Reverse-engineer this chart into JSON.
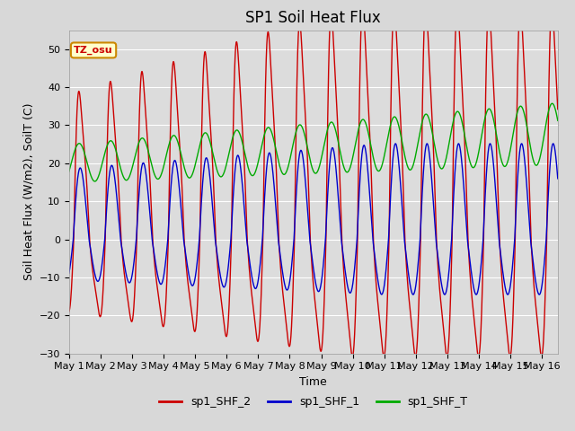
{
  "title": "SP1 Soil Heat Flux",
  "xlabel": "Time",
  "ylabel": "Soil Heat Flux (W/m2), SoilT (C)",
  "ylim": [
    -30,
    55
  ],
  "yticks": [
    -30,
    -20,
    -10,
    0,
    10,
    20,
    30,
    40,
    50
  ],
  "xlim_days": [
    0,
    15.5
  ],
  "xtick_labels": [
    "May 1",
    "May 2",
    "May 3",
    "May 4",
    "May 5",
    "May 6",
    "May 7",
    "May 8",
    "May 9",
    "May 10",
    "May 11",
    "May 12",
    "May 13",
    "May 14",
    "May 15",
    "May 16"
  ],
  "xtick_positions": [
    0,
    1,
    2,
    3,
    4,
    5,
    6,
    7,
    8,
    9,
    10,
    11,
    12,
    13,
    14,
    15
  ],
  "color_shf2": "#cc0000",
  "color_shf1": "#0000cc",
  "color_shft": "#00aa00",
  "label_shf2": "sp1_SHF_2",
  "label_shf1": "sp1_SHF_1",
  "label_shft": "sp1_SHF_T",
  "bg_color": "#dcdcdc",
  "fig_bg_color": "#d8d8d8",
  "tz_label": "TZ_osu",
  "tz_box_facecolor": "#ffffcc",
  "tz_box_edgecolor": "#cc8800",
  "title_fontsize": 12,
  "axis_label_fontsize": 9,
  "tick_fontsize": 8,
  "legend_fontsize": 9,
  "linewidth": 1.0
}
